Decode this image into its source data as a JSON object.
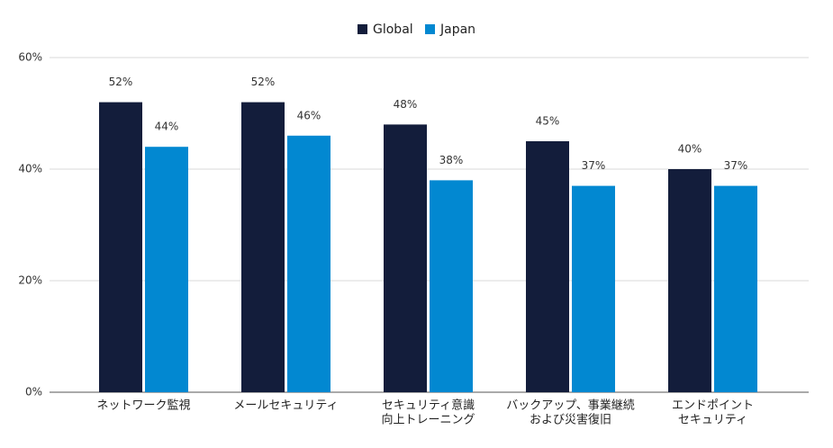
{
  "chart_data": {
    "type": "bar",
    "categories": [
      [
        "ネットワーク監視"
      ],
      [
        "メールセキュリティ"
      ],
      [
        "セキュリティ意識",
        "向上トレーニング"
      ],
      [
        "バックアップ、事業継続",
        "および災害復旧"
      ],
      [
        "エンドポイント",
        "セキュリティ"
      ]
    ],
    "series": [
      {
        "name": "Global",
        "color": "#131d3b",
        "values": [
          52,
          52,
          48,
          45,
          40
        ],
        "value_labels": [
          "52%",
          "52%",
          "48%",
          "45%",
          "40%"
        ]
      },
      {
        "name": "Japan",
        "color": "#0288d1",
        "values": [
          44,
          46,
          38,
          37,
          37
        ],
        "value_labels": [
          "44%",
          "46%",
          "38%",
          "37%",
          "37%"
        ]
      }
    ],
    "ylim": [
      0,
      60
    ],
    "yticks": [
      {
        "value": 0,
        "label": "0%"
      },
      {
        "value": 20,
        "label": "20%"
      },
      {
        "value": 40,
        "label": "40%"
      },
      {
        "value": 60,
        "label": "60%"
      }
    ],
    "grid": true,
    "legend": "top"
  }
}
